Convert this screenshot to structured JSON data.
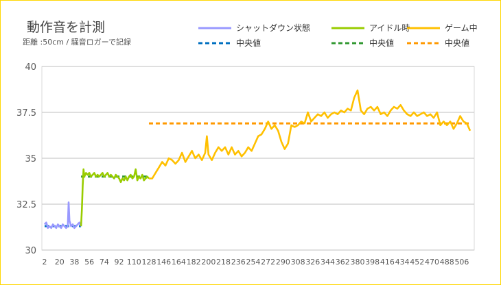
{
  "chart_data": {
    "type": "line",
    "title": "動作音を計測",
    "subtitle": "距離 :50cm / 騒音ロガーで記録",
    "xlabel": "",
    "ylabel": "",
    "ylim": [
      30,
      40
    ],
    "yticks": [
      "30",
      "32.5",
      "35",
      "37.5",
      "40"
    ],
    "xticks": [
      "2",
      "20",
      "38",
      "56",
      "74",
      "92",
      "110",
      "128",
      "146",
      "164",
      "182",
      "200",
      "218",
      "236",
      "254",
      "272",
      "290",
      "308",
      "326",
      "344",
      "362",
      "380",
      "398",
      "416",
      "434",
      "452",
      "470",
      "488",
      "506"
    ],
    "xlim": [
      2,
      516
    ],
    "grid": true,
    "legend_position": "top-right",
    "series": [
      {
        "name": "シャットダウン状態",
        "color": "#9999ff",
        "points": [
          [
            2,
            31.4
          ],
          [
            4,
            31.5
          ],
          [
            6,
            31.2
          ],
          [
            8,
            31.3
          ],
          [
            10,
            31.2
          ],
          [
            12,
            31.4
          ],
          [
            14,
            31.3
          ],
          [
            16,
            31.2
          ],
          [
            18,
            31.4
          ],
          [
            20,
            31.3
          ],
          [
            22,
            31.2
          ],
          [
            24,
            31.4
          ],
          [
            26,
            31.3
          ],
          [
            28,
            31.2
          ],
          [
            30,
            31.3
          ],
          [
            31,
            32.6
          ],
          [
            32,
            31.6
          ],
          [
            34,
            31.3
          ],
          [
            36,
            31.4
          ],
          [
            38,
            31.2
          ],
          [
            40,
            31.3
          ],
          [
            42,
            31.4
          ],
          [
            44,
            31.5
          ],
          [
            46,
            31.3
          ]
        ]
      },
      {
        "name": "アイドル時",
        "color": "#99cc00",
        "points": [
          [
            46,
            31.3
          ],
          [
            47,
            32.2
          ],
          [
            48,
            33.5
          ],
          [
            49,
            34.4
          ],
          [
            50,
            34.0
          ],
          [
            52,
            34.2
          ],
          [
            54,
            34.1
          ],
          [
            56,
            34.2
          ],
          [
            58,
            34.0
          ],
          [
            60,
            34.1
          ],
          [
            62,
            34.2
          ],
          [
            64,
            34.0
          ],
          [
            66,
            34.1
          ],
          [
            68,
            34.0
          ],
          [
            70,
            34.1
          ],
          [
            72,
            34.2
          ],
          [
            74,
            34.0
          ],
          [
            76,
            34.1
          ],
          [
            78,
            34.2
          ],
          [
            80,
            34.0
          ],
          [
            82,
            34.1
          ],
          [
            84,
            34.0
          ],
          [
            86,
            33.9
          ],
          [
            88,
            34.1
          ],
          [
            90,
            34.0
          ],
          [
            92,
            33.9
          ],
          [
            94,
            33.7
          ],
          [
            96,
            33.9
          ],
          [
            98,
            33.8
          ],
          [
            100,
            34.0
          ],
          [
            102,
            33.8
          ],
          [
            104,
            34.0
          ],
          [
            106,
            34.1
          ],
          [
            108,
            33.9
          ],
          [
            110,
            34.0
          ],
          [
            112,
            34.4
          ],
          [
            114,
            33.8
          ],
          [
            116,
            34.0
          ],
          [
            118,
            33.9
          ],
          [
            120,
            34.1
          ],
          [
            122,
            33.8
          ],
          [
            124,
            33.9
          ],
          [
            126,
            34.0
          ],
          [
            128,
            33.9
          ]
        ]
      },
      {
        "name": "ゲーム中",
        "color": "#ffc000",
        "points": [
          [
            128,
            33.9
          ],
          [
            132,
            33.9
          ],
          [
            136,
            34.2
          ],
          [
            140,
            34.5
          ],
          [
            144,
            34.8
          ],
          [
            148,
            34.6
          ],
          [
            152,
            35.0
          ],
          [
            156,
            34.9
          ],
          [
            160,
            34.7
          ],
          [
            164,
            34.9
          ],
          [
            168,
            35.3
          ],
          [
            172,
            34.8
          ],
          [
            176,
            35.1
          ],
          [
            180,
            35.4
          ],
          [
            184,
            35.0
          ],
          [
            188,
            35.2
          ],
          [
            192,
            34.9
          ],
          [
            196,
            35.3
          ],
          [
            198,
            36.2
          ],
          [
            200,
            35.2
          ],
          [
            204,
            34.9
          ],
          [
            208,
            35.3
          ],
          [
            212,
            35.6
          ],
          [
            216,
            35.4
          ],
          [
            220,
            35.6
          ],
          [
            224,
            35.2
          ],
          [
            228,
            35.6
          ],
          [
            232,
            35.2
          ],
          [
            236,
            35.4
          ],
          [
            240,
            35.1
          ],
          [
            244,
            35.3
          ],
          [
            248,
            35.6
          ],
          [
            252,
            35.4
          ],
          [
            256,
            35.8
          ],
          [
            260,
            36.2
          ],
          [
            264,
            36.3
          ],
          [
            268,
            36.6
          ],
          [
            272,
            37.0
          ],
          [
            276,
            36.6
          ],
          [
            280,
            36.8
          ],
          [
            284,
            36.5
          ],
          [
            288,
            35.9
          ],
          [
            292,
            35.5
          ],
          [
            296,
            35.8
          ],
          [
            300,
            36.8
          ],
          [
            304,
            36.7
          ],
          [
            308,
            36.8
          ],
          [
            312,
            37.0
          ],
          [
            316,
            36.9
          ],
          [
            320,
            37.5
          ],
          [
            324,
            37.0
          ],
          [
            328,
            37.2
          ],
          [
            332,
            37.4
          ],
          [
            336,
            37.3
          ],
          [
            340,
            37.5
          ],
          [
            344,
            37.2
          ],
          [
            348,
            37.4
          ],
          [
            352,
            37.5
          ],
          [
            356,
            37.4
          ],
          [
            360,
            37.6
          ],
          [
            364,
            37.5
          ],
          [
            368,
            37.7
          ],
          [
            372,
            37.6
          ],
          [
            376,
            38.3
          ],
          [
            380,
            38.7
          ],
          [
            384,
            37.6
          ],
          [
            388,
            37.4
          ],
          [
            392,
            37.7
          ],
          [
            396,
            37.8
          ],
          [
            400,
            37.6
          ],
          [
            404,
            37.8
          ],
          [
            408,
            37.4
          ],
          [
            412,
            37.5
          ],
          [
            416,
            37.3
          ],
          [
            420,
            37.6
          ],
          [
            424,
            37.8
          ],
          [
            428,
            37.7
          ],
          [
            432,
            37.9
          ],
          [
            436,
            37.6
          ],
          [
            440,
            37.4
          ],
          [
            444,
            37.3
          ],
          [
            448,
            37.5
          ],
          [
            452,
            37.3
          ],
          [
            456,
            37.4
          ],
          [
            460,
            37.5
          ],
          [
            464,
            37.3
          ],
          [
            468,
            37.4
          ],
          [
            472,
            37.2
          ],
          [
            476,
            37.5
          ],
          [
            480,
            36.8
          ],
          [
            484,
            37.0
          ],
          [
            488,
            36.8
          ],
          [
            492,
            37.0
          ],
          [
            496,
            36.6
          ],
          [
            500,
            36.9
          ],
          [
            504,
            37.3
          ],
          [
            508,
            37.0
          ],
          [
            512,
            36.9
          ],
          [
            516,
            36.5
          ]
        ]
      }
    ],
    "medians": [
      {
        "name": "中央値",
        "color": "#0070c0",
        "value": 31.3,
        "x_range": [
          2,
          46
        ]
      },
      {
        "name": "中央値",
        "color": "#339933",
        "value": 34.0,
        "x_range": [
          46,
          128
        ]
      },
      {
        "name": "中央値",
        "color": "#ff9900",
        "value": 36.9,
        "x_range": [
          128,
          516
        ]
      }
    ]
  }
}
